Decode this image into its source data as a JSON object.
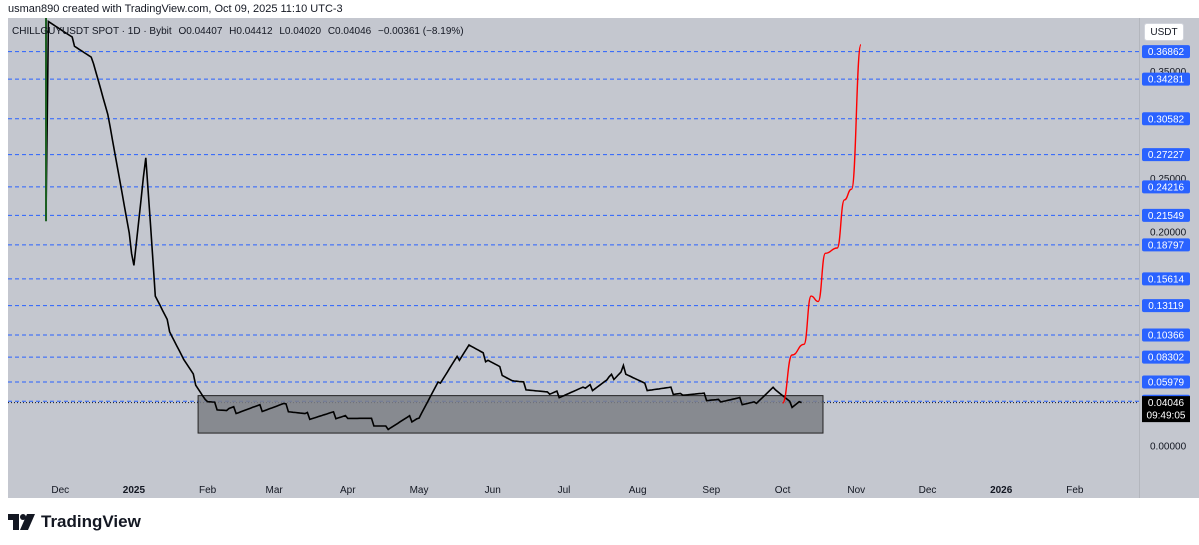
{
  "caption": "usman890 created with TradingView.com, Oct 09, 2025 11:10 UTC-3",
  "legend": {
    "symbol": "CHILLGUYUSDT SPOT · 1D · Bybit",
    "open": "O0.04407",
    "high": "H0.04412",
    "low": "L0.04020",
    "close": "C0.04046",
    "change": "−0.00361 (−8.19%)"
  },
  "currency_button": "USDT",
  "branding": "TradingView",
  "colors": {
    "background": "#c4c7cf",
    "candles": "#000000",
    "level_lines": "#2962ff",
    "projection": "#ff0000",
    "zone_fill": "#7d7f85",
    "label_bg": "#2962ff"
  },
  "chart_data": {
    "type": "candlestick",
    "title": "CHILLGUYUSDT SPOT · 1D · Bybit",
    "x_ticks": [
      "Dec",
      "2025",
      "Feb",
      "Mar",
      "Apr",
      "May",
      "Jun",
      "Jul",
      "Aug",
      "Sep",
      "Oct",
      "Nov",
      "Dec",
      "2026",
      "Feb"
    ],
    "y_ticks": [
      "0.35000",
      "0.25000",
      "0.20000",
      "0.00000"
    ],
    "ylim": [
      -0.03,
      0.4
    ],
    "current_price": {
      "value": "0.04046",
      "countdown": "09:49:05"
    },
    "horizontal_levels": [
      "0.36862",
      "0.34281",
      "0.30582",
      "0.27227",
      "0.24216",
      "0.21549",
      "0.18797",
      "0.15614",
      "0.13119",
      "0.10366",
      "0.08302",
      "0.05979",
      "0.04172"
    ],
    "accumulation_zone": {
      "from": "Feb 2025",
      "to": "Oct 2025",
      "low": 0.012,
      "high": 0.047
    },
    "price_path": [
      {
        "date": "2024-11-25",
        "price": 0.21
      },
      {
        "date": "2024-11-26",
        "price": 0.4
      },
      {
        "date": "2024-12-15",
        "price": 0.36
      },
      {
        "date": "2024-12-22",
        "price": 0.3
      },
      {
        "date": "2025-01-01",
        "price": 0.17
      },
      {
        "date": "2025-01-06",
        "price": 0.27
      },
      {
        "date": "2025-01-10",
        "price": 0.14
      },
      {
        "date": "2025-01-22",
        "price": 0.08
      },
      {
        "date": "2025-02-01",
        "price": 0.04
      },
      {
        "date": "2025-02-10",
        "price": 0.033
      },
      {
        "date": "2025-03-05",
        "price": 0.037
      },
      {
        "date": "2025-03-15",
        "price": 0.028
      },
      {
        "date": "2025-04-01",
        "price": 0.029
      },
      {
        "date": "2025-04-18",
        "price": 0.018
      },
      {
        "date": "2025-05-01",
        "price": 0.028
      },
      {
        "date": "2025-05-10",
        "price": 0.06
      },
      {
        "date": "2025-05-22",
        "price": 0.095
      },
      {
        "date": "2025-05-30",
        "price": 0.08
      },
      {
        "date": "2025-06-10",
        "price": 0.06
      },
      {
        "date": "2025-06-25",
        "price": 0.047
      },
      {
        "date": "2025-07-10",
        "price": 0.052
      },
      {
        "date": "2025-07-20",
        "price": 0.062
      },
      {
        "date": "2025-07-26",
        "price": 0.072
      },
      {
        "date": "2025-08-05",
        "price": 0.055
      },
      {
        "date": "2025-08-20",
        "price": 0.05
      },
      {
        "date": "2025-09-05",
        "price": 0.043
      },
      {
        "date": "2025-09-20",
        "price": 0.041
      },
      {
        "date": "2025-09-28",
        "price": 0.053
      },
      {
        "date": "2025-10-05",
        "price": 0.036
      },
      {
        "date": "2025-10-09",
        "price": 0.04046
      }
    ],
    "projection_path": [
      {
        "date": "2025-10-01",
        "price": 0.04
      },
      {
        "date": "2025-10-05",
        "price": 0.085
      },
      {
        "date": "2025-10-10",
        "price": 0.095
      },
      {
        "date": "2025-10-13",
        "price": 0.14
      },
      {
        "date": "2025-10-16",
        "price": 0.135
      },
      {
        "date": "2025-10-19",
        "price": 0.18
      },
      {
        "date": "2025-10-24",
        "price": 0.185
      },
      {
        "date": "2025-10-27",
        "price": 0.23
      },
      {
        "date": "2025-10-30",
        "price": 0.24
      },
      {
        "date": "2025-11-03",
        "price": 0.375
      }
    ]
  }
}
